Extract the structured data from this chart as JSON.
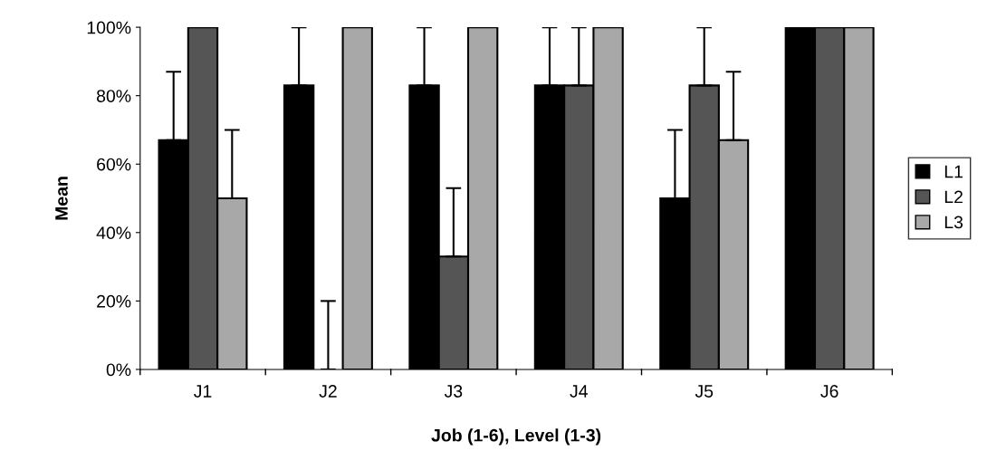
{
  "chart_data": {
    "type": "bar",
    "xlabel": "Job (1-6), Level (1-3)",
    "ylabel": "Mean",
    "categories": [
      "J1",
      "J2",
      "J3",
      "J4",
      "J5",
      "J6"
    ],
    "series": [
      {
        "name": "L1",
        "color": "#000000",
        "values": [
          67,
          83,
          83,
          83,
          50,
          100
        ],
        "errors": [
          [
            67,
            87
          ],
          [
            83,
            100
          ],
          [
            83,
            100
          ],
          [
            83,
            100
          ],
          [
            50,
            70
          ],
          null
        ]
      },
      {
        "name": "L2",
        "color": "#555555",
        "values": [
          100,
          0,
          33,
          83,
          83,
          100
        ],
        "errors": [
          null,
          [
            0,
            20
          ],
          [
            33,
            53
          ],
          [
            83,
            100
          ],
          [
            83,
            100
          ],
          null
        ]
      },
      {
        "name": "L3",
        "color": "#a8a8a8",
        "values": [
          50,
          100,
          100,
          100,
          67,
          100
        ],
        "errors": [
          [
            50,
            70
          ],
          null,
          null,
          null,
          [
            67,
            87
          ],
          null
        ]
      }
    ],
    "ylim": [
      0,
      100
    ],
    "yticks": [
      {
        "value": 0,
        "label": "0%"
      },
      {
        "value": 20,
        "label": "20%"
      },
      {
        "value": 40,
        "label": "40%"
      },
      {
        "value": 60,
        "label": "60%"
      },
      {
        "value": 80,
        "label": "80%"
      },
      {
        "value": 100,
        "label": "100%"
      }
    ],
    "grid": false,
    "legend": "right"
  }
}
